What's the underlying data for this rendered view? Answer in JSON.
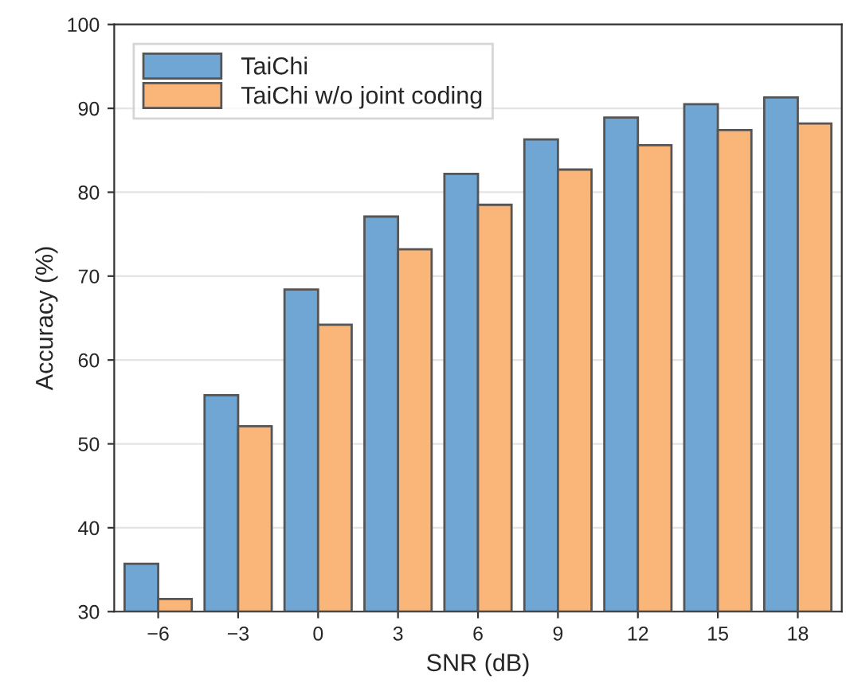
{
  "chart_data": {
    "type": "bar",
    "xlabel": "SNR (dB)",
    "ylabel": "Accuracy (%)",
    "categories": [
      "−6",
      "−3",
      "0",
      "3",
      "6",
      "9",
      "12",
      "15",
      "18"
    ],
    "series": [
      {
        "name": "TaiChi",
        "color": "#6fa6d4",
        "values": [
          35.7,
          55.8,
          68.4,
          77.1,
          82.2,
          86.3,
          88.9,
          90.5,
          91.3
        ]
      },
      {
        "name": "TaiChi w/o joint coding",
        "color": "#f9b678",
        "values": [
          31.5,
          52.1,
          64.2,
          73.2,
          78.5,
          82.7,
          85.6,
          87.4,
          88.2
        ]
      }
    ],
    "ylim": [
      30,
      100
    ],
    "yticks": [
      30,
      40,
      50,
      60,
      70,
      80,
      90,
      100
    ],
    "grid": "y",
    "legend": "top left"
  }
}
